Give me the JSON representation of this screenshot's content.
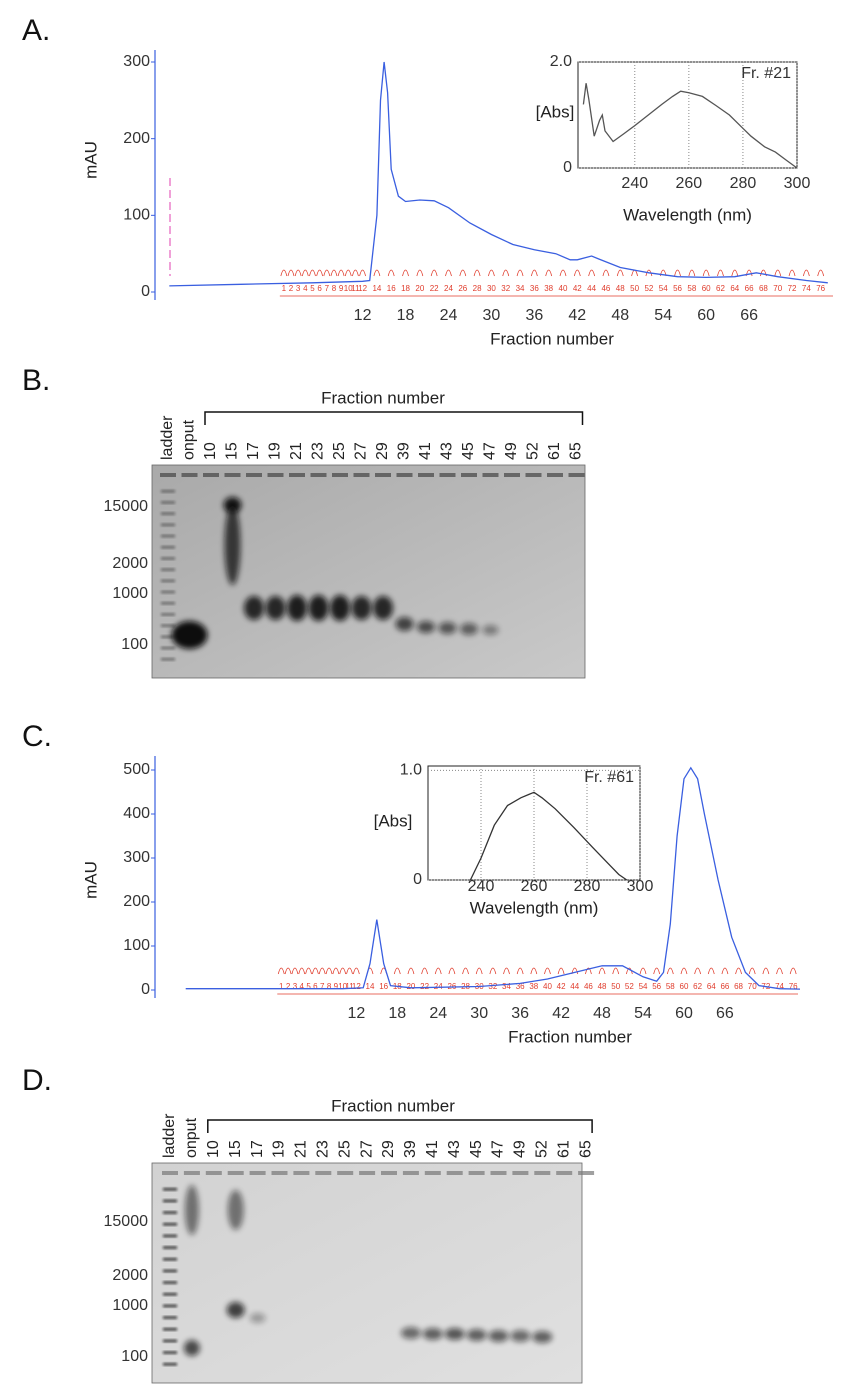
{
  "panels": [
    "A.",
    "B.",
    "C.",
    "D."
  ],
  "chart_data": [
    {
      "type": "line",
      "ylabel": "mAU",
      "xlabel": "Fraction number",
      "color": "#3a5fe0",
      "x": [
        -15,
        -5,
        5,
        12,
        13,
        14,
        14.5,
        15,
        15.5,
        16,
        17,
        18,
        20,
        22,
        24,
        27,
        30,
        33,
        36,
        39,
        41,
        42,
        44,
        45,
        48,
        52,
        56,
        60,
        64,
        67,
        70,
        74,
        77
      ],
      "values": [
        8,
        10,
        12,
        14,
        15,
        100,
        250,
        300,
        260,
        160,
        125,
        118,
        120,
        119,
        110,
        90,
        75,
        62,
        55,
        50,
        42,
        42,
        47,
        43,
        32,
        25,
        20,
        19,
        20,
        25,
        20,
        15,
        12
      ],
      "xlim": [
        -17,
        78
      ],
      "ylim": [
        0,
        300
      ],
      "xticks": [
        12,
        18,
        24,
        30,
        36,
        42,
        48,
        54,
        60,
        66
      ],
      "yticks": [
        0,
        100,
        200,
        300
      ],
      "fraction_labels": [
        1,
        2,
        3,
        4,
        5,
        6,
        7,
        8,
        9,
        10,
        11,
        12,
        14,
        16,
        18,
        20,
        22,
        24,
        26,
        28,
        30,
        32,
        34,
        36,
        38,
        40,
        42,
        44,
        46,
        48,
        50,
        52,
        54,
        56,
        58,
        60,
        62,
        64,
        66,
        68,
        70,
        72,
        74,
        76
      ]
    },
    {
      "type": "line",
      "ylabel": "[Abs]",
      "xlabel": "Wavelength (nm)",
      "annotation": "Fr. #21",
      "color": "#555555",
      "grid": true,
      "x": [
        221,
        222,
        223,
        225,
        227,
        228,
        229,
        232,
        236,
        240,
        245,
        250,
        254,
        257,
        260,
        265,
        270,
        275,
        280,
        283,
        288,
        292,
        296,
        300
      ],
      "values": [
        1.2,
        1.6,
        1.3,
        0.6,
        0.9,
        1.0,
        0.7,
        0.5,
        0.65,
        0.8,
        1.0,
        1.2,
        1.35,
        1.45,
        1.42,
        1.35,
        1.18,
        1.0,
        0.75,
        0.6,
        0.4,
        0.3,
        0.15,
        0
      ],
      "xlim": [
        219,
        300
      ],
      "ylim": [
        0,
        2
      ],
      "xticks": [
        240,
        260,
        280,
        300
      ],
      "yticks": [
        0,
        {
          "value": 2,
          "label": "2.0"
        }
      ]
    },
    {
      "type": "line",
      "ylabel": "mAU",
      "xlabel": "Fraction number",
      "color": "#3a5fe0",
      "x": [
        -13,
        10,
        13,
        14,
        15,
        16,
        17,
        20,
        30,
        36,
        40,
        44,
        48,
        51,
        54,
        56,
        57,
        58,
        59,
        60,
        61,
        62,
        63,
        65,
        67,
        69,
        71,
        74,
        77
      ],
      "values": [
        3,
        3,
        5,
        60,
        160,
        60,
        10,
        5,
        8,
        15,
        25,
        40,
        55,
        55,
        30,
        20,
        40,
        150,
        350,
        480,
        505,
        480,
        400,
        250,
        120,
        40,
        10,
        3,
        2
      ],
      "xlim": [
        -17.5,
        77
      ],
      "ylim": [
        0,
        500
      ],
      "xticks": [
        12,
        18,
        24,
        30,
        36,
        42,
        48,
        54,
        60,
        66
      ],
      "yticks": [
        0,
        100,
        200,
        300,
        400,
        500
      ],
      "fraction_labels": [
        1,
        2,
        3,
        4,
        5,
        6,
        7,
        8,
        9,
        10,
        11,
        12,
        14,
        16,
        18,
        20,
        22,
        24,
        26,
        28,
        30,
        32,
        34,
        36,
        38,
        40,
        42,
        44,
        46,
        48,
        50,
        52,
        54,
        56,
        58,
        60,
        62,
        64,
        66,
        68,
        70,
        72,
        74,
        76
      ]
    },
    {
      "type": "line",
      "ylabel": "[Abs]",
      "xlabel": "Wavelength (nm)",
      "annotation": "Fr. #61",
      "color": "#333333",
      "grid": true,
      "x": [
        236,
        240,
        245,
        250,
        255,
        258,
        260,
        263,
        268,
        275,
        282,
        288,
        292,
        295
      ],
      "values": [
        0,
        0.2,
        0.5,
        0.68,
        0.75,
        0.78,
        0.8,
        0.75,
        0.65,
        0.48,
        0.3,
        0.15,
        0.05,
        0
      ],
      "xlim": [
        220,
        300
      ],
      "ylim": [
        0,
        1.04
      ],
      "xticks": [
        240,
        260,
        280,
        300
      ],
      "yticks": [
        0,
        {
          "value": 1,
          "label": "1.0"
        }
      ]
    }
  ],
  "gels": [
    {
      "header": "Fraction number",
      "lanes": [
        "ladder",
        "onput",
        "10",
        "15",
        "17",
        "19",
        "21",
        "23",
        "25",
        "27",
        "29",
        "39",
        "41",
        "43",
        "45",
        "47",
        "49",
        "52",
        "61",
        "65"
      ],
      "sizes": [
        "15000",
        "2000",
        "1000",
        "100"
      ]
    },
    {
      "header": "Fraction number",
      "lanes": [
        "ladder",
        "onput",
        "10",
        "15",
        "17",
        "19",
        "21",
        "23",
        "25",
        "27",
        "29",
        "39",
        "41",
        "43",
        "45",
        "47",
        "49",
        "52",
        "61",
        "65"
      ],
      "sizes": [
        "15000",
        "2000",
        "1000",
        "100"
      ]
    }
  ]
}
